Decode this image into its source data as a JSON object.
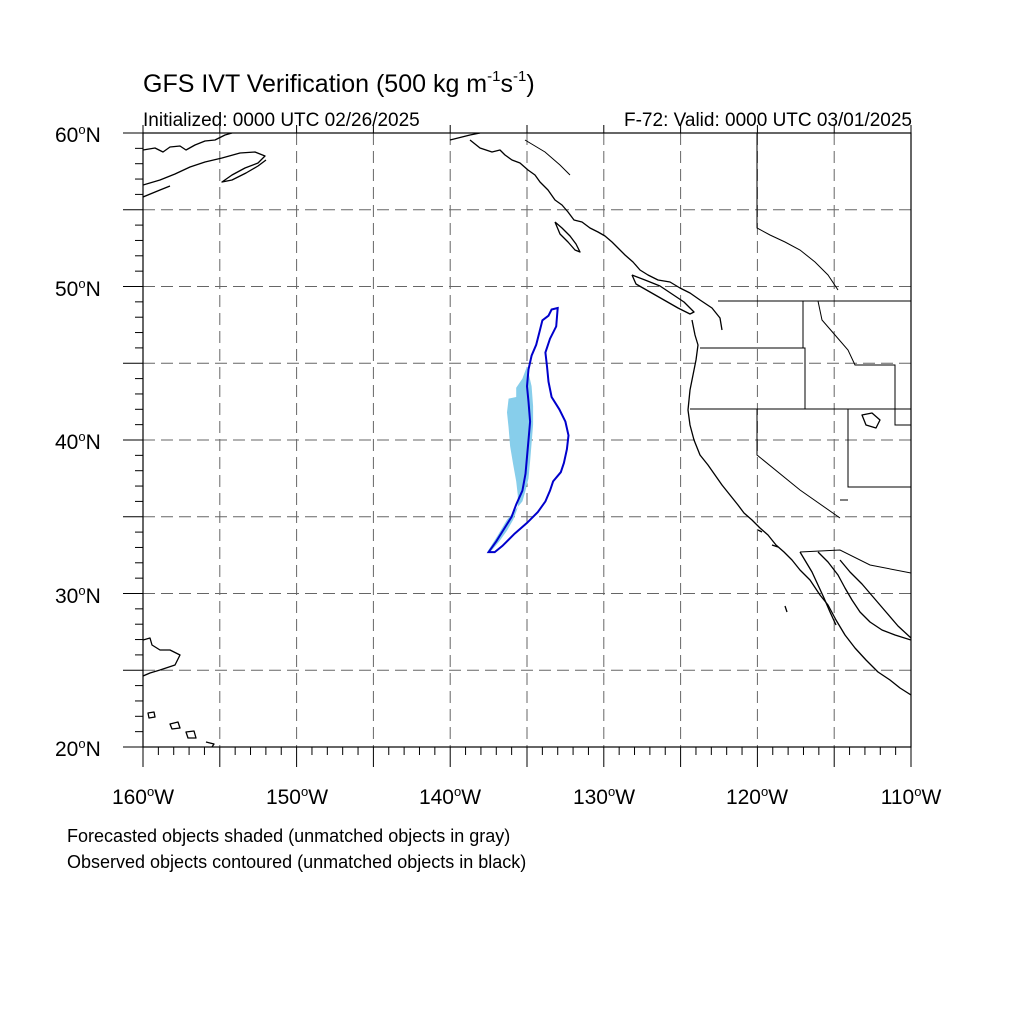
{
  "title": {
    "main": "GFS IVT Verification (500 kg m",
    "exp1": "-1",
    "mid": "s",
    "exp2": "-1",
    "end": ")"
  },
  "subtitle_left": "Initialized: 0000 UTC 02/26/2025",
  "subtitle_right": "F-72: Valid: 0000 UTC 03/01/2025",
  "lat_labels": [
    {
      "value": "60",
      "unit": "N"
    },
    {
      "value": "50",
      "unit": "N"
    },
    {
      "value": "40",
      "unit": "N"
    },
    {
      "value": "30",
      "unit": "N"
    },
    {
      "value": "20",
      "unit": "N"
    }
  ],
  "lon_labels": [
    {
      "value": "160",
      "unit": "W"
    },
    {
      "value": "150",
      "unit": "W"
    },
    {
      "value": "140",
      "unit": "W"
    },
    {
      "value": "130",
      "unit": "W"
    },
    {
      "value": "120",
      "unit": "W"
    },
    {
      "value": "110",
      "unit": "W"
    }
  ],
  "degree_symbol": "o",
  "notes": [
    "Forecasted objects shaded (unmatched objects in gray)",
    "Observed objects contoured (unmatched objects in black)"
  ],
  "map": {
    "lon_range": [
      -160,
      -110
    ],
    "lat_range": [
      20,
      60
    ],
    "grid_interval_deg": 5,
    "colors": {
      "forecast_fill": "#87ceeb",
      "observed_contour": "#0000cc",
      "coastline": "#000000",
      "gridline": "#666666"
    },
    "forecast_object": [
      [
        -135.0,
        44.8
      ],
      [
        -134.7,
        43.5
      ],
      [
        -134.6,
        42.2
      ],
      [
        -134.6,
        41.0
      ],
      [
        -134.7,
        39.8
      ],
      [
        -134.8,
        38.6
      ],
      [
        -134.9,
        37.5
      ],
      [
        -135.1,
        36.7
      ],
      [
        -135.3,
        36.0
      ],
      [
        -135.8,
        35.4
      ],
      [
        -136.3,
        34.8
      ],
      [
        -136.9,
        33.8
      ],
      [
        -137.6,
        32.7
      ],
      [
        -137.3,
        32.8
      ],
      [
        -136.8,
        33.4
      ],
      [
        -136.3,
        34.1
      ],
      [
        -135.9,
        34.8
      ],
      [
        -135.6,
        35.6
      ],
      [
        -135.6,
        36.4
      ],
      [
        -135.7,
        37.3
      ],
      [
        -135.9,
        38.4
      ],
      [
        -136.1,
        39.6
      ],
      [
        -136.2,
        40.8
      ],
      [
        -136.3,
        41.8
      ],
      [
        -136.2,
        42.7
      ],
      [
        -135.7,
        42.8
      ],
      [
        -135.7,
        43.4
      ],
      [
        -135.3,
        44.0
      ],
      [
        -135.0,
        44.8
      ]
    ],
    "observed_object": [
      [
        -133.0,
        48.6
      ],
      [
        -133.4,
        48.5
      ],
      [
        -133.6,
        48.1
      ],
      [
        -134.0,
        47.8
      ],
      [
        -134.2,
        47.0
      ],
      [
        -134.4,
        46.2
      ],
      [
        -134.7,
        45.5
      ],
      [
        -134.9,
        44.6
      ],
      [
        -135.0,
        43.5
      ],
      [
        -134.9,
        42.5
      ],
      [
        -134.8,
        41.2
      ],
      [
        -134.9,
        40.0
      ],
      [
        -135.0,
        38.9
      ],
      [
        -135.1,
        37.8
      ],
      [
        -135.3,
        36.7
      ],
      [
        -135.7,
        35.8
      ],
      [
        -136.0,
        35.0
      ],
      [
        -136.5,
        34.2
      ],
      [
        -137.0,
        33.4
      ],
      [
        -137.5,
        32.7
      ],
      [
        -137.1,
        32.7
      ],
      [
        -136.6,
        33.1
      ],
      [
        -135.8,
        33.9
      ],
      [
        -135.0,
        34.6
      ],
      [
        -134.3,
        35.3
      ],
      [
        -133.8,
        36.0
      ],
      [
        -133.5,
        36.7
      ],
      [
        -133.3,
        37.3
      ],
      [
        -132.8,
        37.9
      ],
      [
        -132.6,
        38.5
      ],
      [
        -132.4,
        39.4
      ],
      [
        -132.3,
        40.3
      ],
      [
        -132.5,
        41.2
      ],
      [
        -132.9,
        42.0
      ],
      [
        -133.4,
        42.8
      ],
      [
        -133.6,
        43.8
      ],
      [
        -133.7,
        44.8
      ],
      [
        -133.8,
        45.7
      ],
      [
        -133.5,
        46.6
      ],
      [
        -133.1,
        47.4
      ],
      [
        -133.0,
        48.6
      ]
    ]
  }
}
